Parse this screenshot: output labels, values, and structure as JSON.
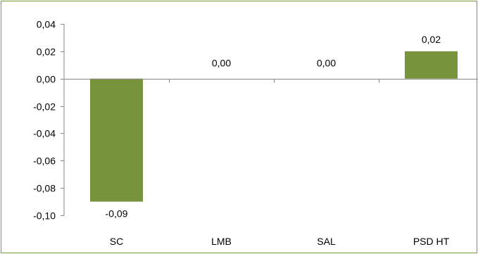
{
  "chart_data": {
    "type": "bar",
    "categories": [
      "SC",
      "LMB",
      "SAL",
      "PSD HT"
    ],
    "values": [
      -0.09,
      0.0,
      0.0,
      0.02
    ],
    "data_labels": [
      "-0,09",
      "0,00",
      "0,00",
      "0,02"
    ],
    "ylim": [
      -0.1,
      0.04
    ],
    "y_ticks": [
      0.04,
      0.02,
      0.0,
      -0.02,
      -0.04,
      -0.06,
      -0.08,
      -0.1
    ],
    "y_tick_labels": [
      "0,04",
      "0,02",
      "0,00",
      "-0,02",
      "-0,04",
      "-0,06",
      "-0,08",
      "-0,10"
    ],
    "title": "",
    "xlabel": "",
    "ylabel": "",
    "grid": false,
    "legend": "none",
    "colors": {
      "bar": "#77933c",
      "border": "#7a9a3a",
      "axis": "#868686"
    }
  }
}
